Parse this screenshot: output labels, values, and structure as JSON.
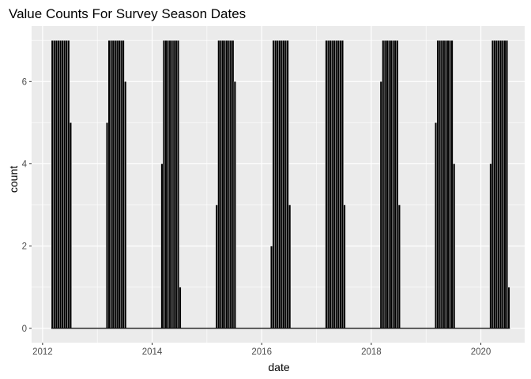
{
  "chart_data": {
    "type": "histogram",
    "title": "Value Counts For Survey Season Dates",
    "xlabel": "date",
    "ylabel": "count",
    "xlim": [
      2011.8,
      2020.8
    ],
    "ylim": [
      -0.35,
      7.35
    ],
    "x_ticks": [
      2012,
      2014,
      2016,
      2018,
      2020
    ],
    "x_tick_labels": [
      "2012",
      "2014",
      "2016",
      "2018",
      "2020"
    ],
    "y_ticks": [
      0,
      2,
      4,
      6
    ],
    "y_tick_labels": [
      "0",
      "2",
      "4",
      "6"
    ],
    "grid": true,
    "bar_fill": "#000000",
    "bar_outline": "#ffffff",
    "panel_background": "#ebebeb",
    "gridline_color": "#ffffff",
    "seasons": [
      {
        "year": 2012,
        "start": 2012.16,
        "end": 2012.53,
        "counts": [
          7,
          7,
          7,
          7,
          7,
          7,
          7,
          7,
          7,
          5
        ]
      },
      {
        "year": 2013,
        "start": 2013.16,
        "end": 2013.53,
        "counts": [
          5,
          7,
          7,
          7,
          7,
          7,
          7,
          7,
          7,
          6
        ]
      },
      {
        "year": 2014,
        "start": 2014.16,
        "end": 2014.53,
        "counts": [
          4,
          7,
          7,
          7,
          7,
          7,
          7,
          7,
          7,
          1
        ]
      },
      {
        "year": 2015,
        "start": 2015.16,
        "end": 2015.53,
        "counts": [
          3,
          7,
          7,
          7,
          7,
          7,
          7,
          7,
          7,
          6
        ]
      },
      {
        "year": 2016,
        "start": 2016.16,
        "end": 2016.53,
        "counts": [
          2,
          7,
          7,
          7,
          7,
          7,
          7,
          7,
          7,
          3
        ]
      },
      {
        "year": 2017,
        "start": 2017.16,
        "end": 2017.53,
        "counts": [
          7,
          7,
          7,
          7,
          7,
          7,
          7,
          7,
          7,
          3
        ]
      },
      {
        "year": 2018,
        "start": 2018.16,
        "end": 2018.53,
        "counts": [
          6,
          7,
          7,
          7,
          7,
          7,
          7,
          7,
          7,
          3
        ]
      },
      {
        "year": 2019,
        "start": 2019.16,
        "end": 2019.53,
        "counts": [
          5,
          7,
          7,
          7,
          7,
          7,
          7,
          7,
          7,
          4
        ]
      },
      {
        "year": 2020,
        "start": 2020.16,
        "end": 2020.53,
        "counts": [
          4,
          7,
          7,
          7,
          7,
          7,
          7,
          7,
          7,
          1
        ]
      }
    ]
  }
}
